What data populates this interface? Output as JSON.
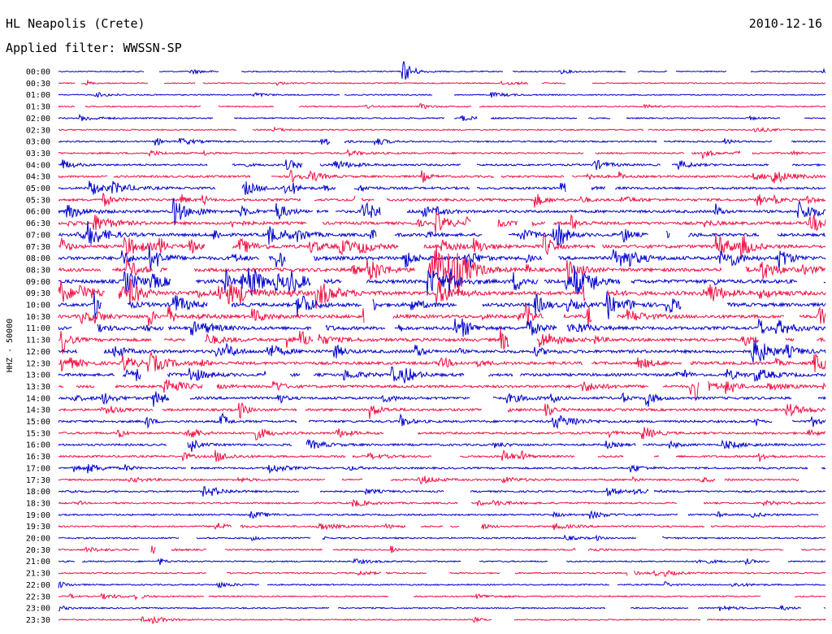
{
  "header": {
    "station": "HL Neapolis (Crete)",
    "date": "2010-12-16",
    "filter": "Applied filter: WWSSN-SP"
  },
  "chart_data": {
    "type": "line",
    "ylabel": "HHZ - 50000",
    "rows": [
      "00:00",
      "00:30",
      "01:00",
      "01:30",
      "02:00",
      "02:30",
      "03:00",
      "03:30",
      "04:00",
      "04:30",
      "05:00",
      "05:30",
      "06:00",
      "06:30",
      "07:00",
      "07:30",
      "08:00",
      "08:30",
      "09:00",
      "09:30",
      "10:00",
      "10:30",
      "11:00",
      "11:30",
      "12:00",
      "12:30",
      "13:00",
      "13:30",
      "14:00",
      "14:30",
      "15:00",
      "15:30",
      "16:00",
      "16:30",
      "17:00",
      "17:30",
      "18:00",
      "18:30",
      "19:00",
      "19:30",
      "20:00",
      "20:30",
      "21:00",
      "21:30",
      "22:00",
      "22:30",
      "23:00",
      "23:30"
    ],
    "colors": [
      "#0000cc",
      "#ee1144"
    ],
    "activity": [
      0.05,
      0.05,
      0.05,
      0.08,
      0.1,
      0.1,
      0.18,
      0.25,
      0.32,
      0.4,
      0.48,
      0.55,
      0.62,
      0.68,
      0.75,
      0.82,
      0.88,
      0.92,
      0.96,
      1.0,
      0.92,
      0.85,
      0.8,
      0.78,
      0.74,
      0.7,
      0.66,
      0.6,
      0.56,
      0.5,
      0.46,
      0.42,
      0.38,
      0.34,
      0.3,
      0.28,
      0.26,
      0.24,
      0.22,
      0.2,
      0.18,
      0.16,
      0.14,
      0.13,
      0.12,
      0.11,
      0.1,
      0.1
    ],
    "events": [
      {
        "row": 0,
        "minute": 13.5,
        "amplitude": 1.0
      }
    ]
  }
}
